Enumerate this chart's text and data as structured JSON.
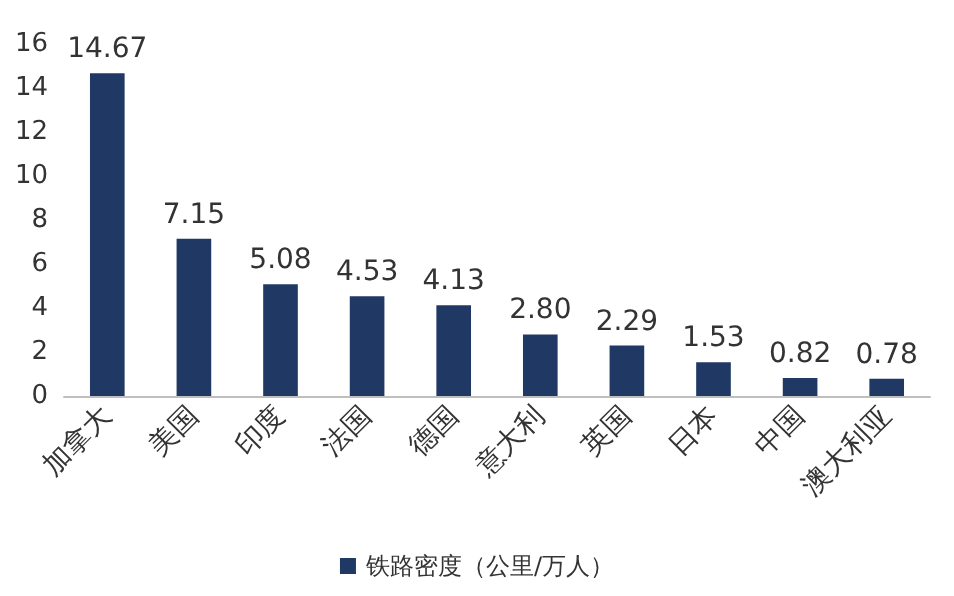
{
  "chart_data": {
    "type": "bar",
    "categories": [
      "加拿大",
      "美国",
      "印度",
      "法国",
      "德国",
      "意大利",
      "英国",
      "日本",
      "中国",
      "澳大利亚"
    ],
    "series": [
      {
        "name": "铁路密度（公里/万人）",
        "color": "#1f3864",
        "values": [
          14.67,
          7.15,
          5.08,
          4.53,
          4.13,
          2.8,
          2.29,
          1.53,
          0.82,
          0.78
        ],
        "value_labels": [
          "14.67",
          "7.15",
          "5.08",
          "4.53",
          "4.13",
          "2.80",
          "2.29",
          "1.53",
          "0.82",
          "0.78"
        ]
      }
    ],
    "ylim": [
      0,
      16
    ],
    "yticks": [
      0,
      2,
      4,
      6,
      8,
      10,
      12,
      14,
      16
    ],
    "grid": false,
    "legend": "bottom"
  }
}
